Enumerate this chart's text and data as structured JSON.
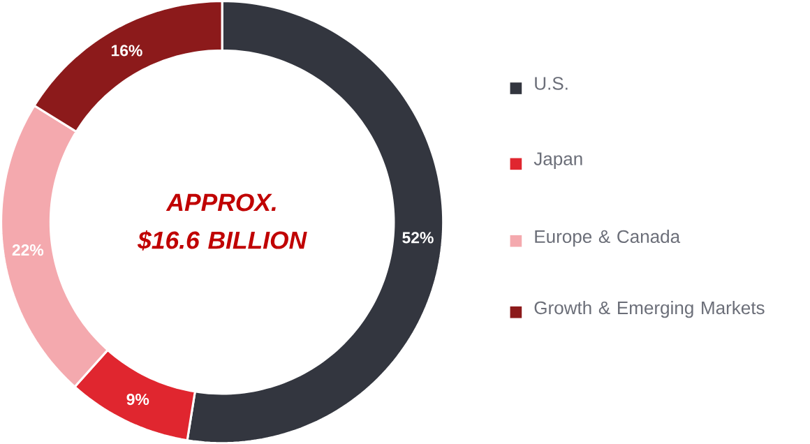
{
  "chart_data": {
    "type": "donut",
    "categories": [
      "U.S.",
      "Japan",
      "Europe & Canada",
      "Growth & Emerging Markets"
    ],
    "values": [
      52,
      9,
      22,
      16
    ],
    "colors": [
      "#33363f",
      "#e0262f",
      "#f4a9ae",
      "#8c1a1b"
    ],
    "value_labels": [
      "52%",
      "9%",
      "22%",
      "16%"
    ],
    "annotations": [
      "APPROX. $16.6 BILLION"
    ],
    "legend": "right"
  }
}
